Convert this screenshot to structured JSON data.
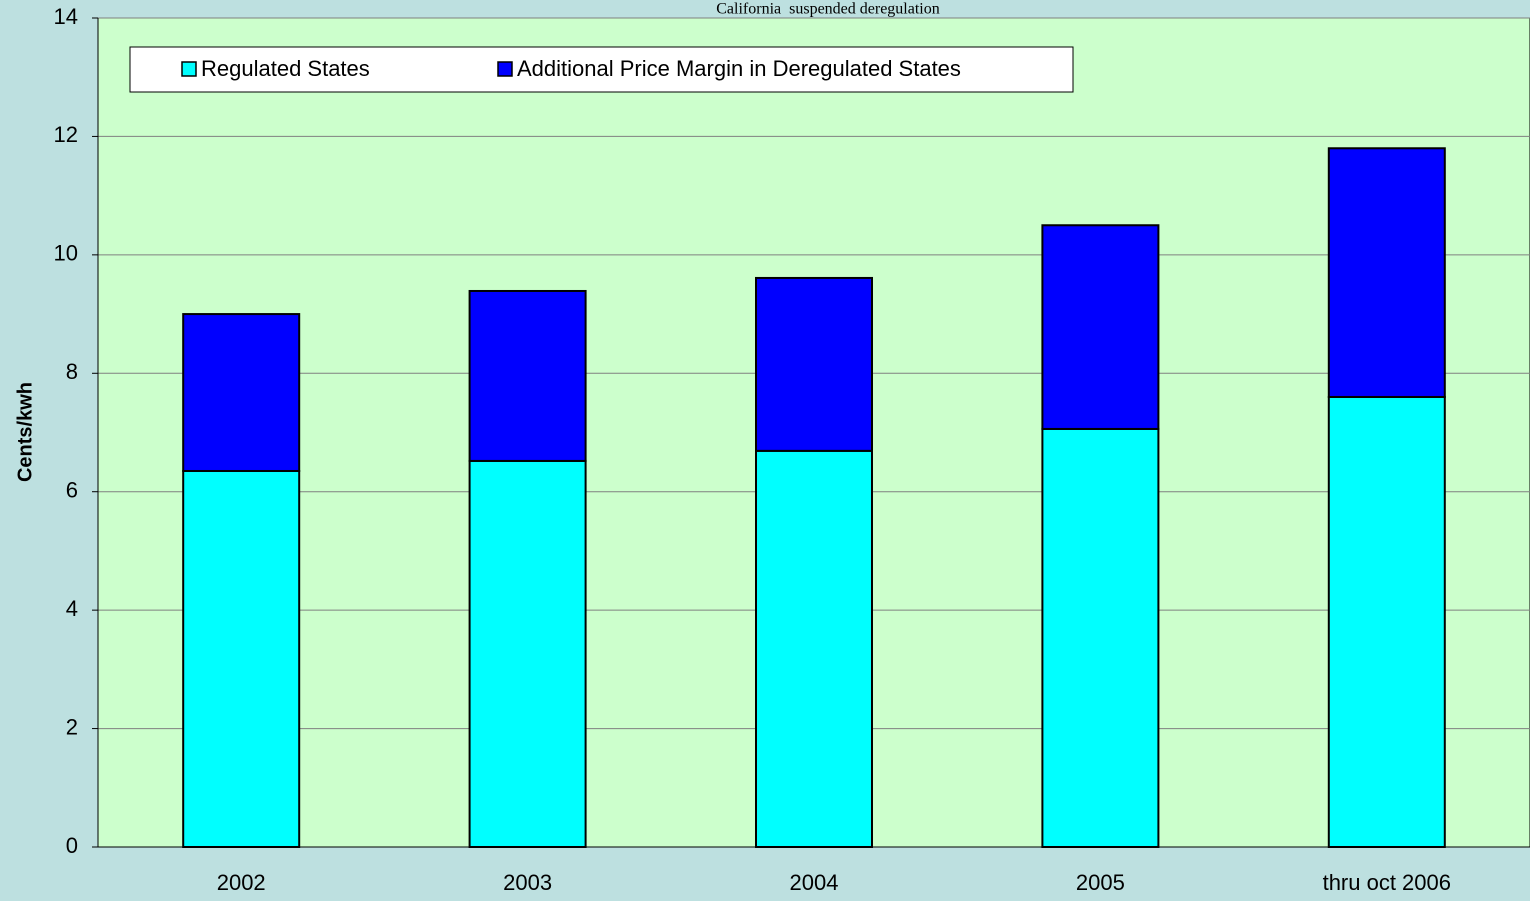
{
  "chart_data": {
    "type": "stacked_bar",
    "title": "California  suspended deregulation",
    "y_axis_label": "Cents/kwh",
    "categories": [
      "2002",
      "2003",
      "2004",
      "2005",
      "thru oct 2006"
    ],
    "series": [
      {
        "name": "Regulated States",
        "color": "#00ffff",
        "values": [
          6.35,
          6.52,
          6.69,
          7.06,
          7.6
        ]
      },
      {
        "name": "Additional Price Margin in Deregulated States",
        "color": "#0000ff",
        "values": [
          2.65,
          2.87,
          2.92,
          3.44,
          4.2
        ]
      }
    ],
    "ylim": [
      0,
      14
    ],
    "yticks": [
      0,
      2,
      4,
      6,
      8,
      10,
      12,
      14
    ],
    "grid": true,
    "legend": "top-left"
  }
}
